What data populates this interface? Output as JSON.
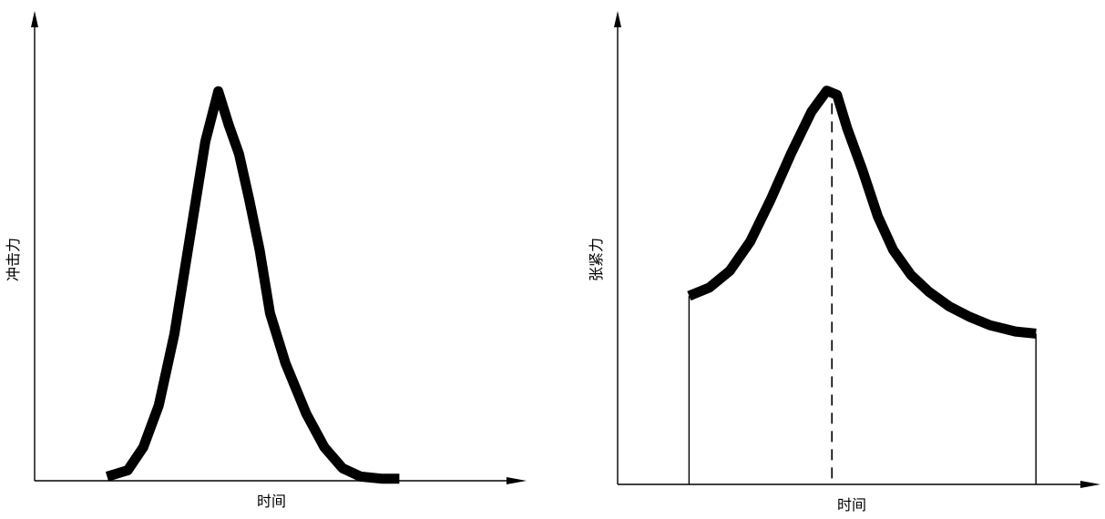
{
  "chart_data": [
    {
      "type": "line",
      "ylabel": "冲击力",
      "xlabel": "时间",
      "xlim": [
        0,
        10
      ],
      "ylim": [
        0,
        10
      ],
      "series": [
        {
          "x": [
            1.4,
            1.8,
            2.1,
            2.4,
            2.7,
            3.0,
            3.3,
            3.55,
            3.75,
            3.95,
            4.15,
            4.35,
            4.55,
            4.85,
            5.25,
            5.6,
            5.95,
            6.3,
            6.7,
            7.05
          ],
          "y": [
            0.1,
            0.25,
            0.8,
            1.8,
            3.5,
            5.8,
            8.1,
            9.3,
            8.5,
            7.8,
            6.7,
            5.5,
            4.0,
            2.8,
            1.6,
            0.8,
            0.3,
            0.1,
            0.05,
            0.05
          ]
        }
      ],
      "marker": {
        "x": null
      }
    },
    {
      "type": "line",
      "ylabel": "张紧力",
      "xlabel": "时间",
      "xlim": [
        0,
        10
      ],
      "ylim": [
        0,
        10
      ],
      "series": [
        {
          "x": [
            1.4,
            1.8,
            2.2,
            2.6,
            3.0,
            3.4,
            3.8,
            4.1,
            4.3,
            4.5,
            4.8,
            5.1,
            5.4,
            5.75,
            6.1,
            6.5,
            6.9,
            7.3,
            7.8,
            8.2
          ],
          "y": [
            4.5,
            4.7,
            5.1,
            5.8,
            6.8,
            7.9,
            8.9,
            9.4,
            9.3,
            8.5,
            7.5,
            6.4,
            5.6,
            5.0,
            4.6,
            4.25,
            4.0,
            3.8,
            3.65,
            3.6
          ]
        }
      ],
      "marker": {
        "x": 4.2
      }
    }
  ]
}
